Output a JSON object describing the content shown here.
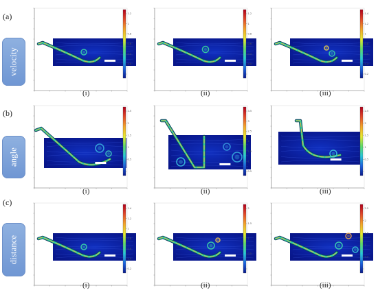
{
  "figure": {
    "rows": [
      {
        "letter": "(a)",
        "tab": "velocity",
        "panels": [
          {
            "label": "(i)",
            "variant": "v1",
            "cbar_ticks": [
              "1.2",
              "1",
              "0.8",
              "0.6",
              "0.4",
              "0.2",
              ""
            ]
          },
          {
            "label": "(ii)",
            "variant": "v2",
            "cbar_ticks": [
              "1.2",
              "1",
              "0.8",
              "0.6",
              "0.4",
              "0.2",
              ""
            ]
          },
          {
            "label": "(iii)",
            "variant": "v3",
            "cbar_ticks": [
              "1.4",
              "1.2",
              "1",
              "0.8",
              "0.6",
              "0.4",
              "0.2"
            ]
          }
        ]
      },
      {
        "letter": "(b)",
        "tab": "angle",
        "panels": [
          {
            "label": "(i)",
            "variant": "a1",
            "cbar_ticks": [
              "2.5",
              "2",
              "1.5",
              "1",
              "0.5",
              ""
            ]
          },
          {
            "label": "(ii)",
            "variant": "a2",
            "cbar_ticks": [
              "3.5",
              "3",
              "2.5",
              "2",
              "1.5",
              "1",
              "0.5"
            ]
          },
          {
            "label": "(iii)",
            "variant": "a3",
            "cbar_ticks": [
              "2.5",
              "2",
              "1.5",
              "1",
              "0.5",
              ""
            ]
          }
        ]
      },
      {
        "letter": "(c)",
        "tab": "distance",
        "panels": [
          {
            "label": "(i)",
            "variant": "d1",
            "cbar_ticks": [
              "1.4",
              "1.2",
              "1",
              "0.8",
              "0.6",
              "0.4",
              "0.2"
            ]
          },
          {
            "label": "(ii)",
            "variant": "d2",
            "cbar_ticks": [
              "2",
              "1.5",
              "1",
              "0.5",
              ""
            ]
          },
          {
            "label": "(iii)",
            "variant": "d3",
            "cbar_ticks": [
              "2.5",
              "2",
              "1.5",
              "1",
              "0.5",
              ""
            ]
          }
        ]
      }
    ],
    "colors": {
      "tab_blue": "#7aa0d8",
      "field_blue": "#0a1e9c",
      "colorbar": [
        "#b3001b",
        "#e34a2a",
        "#f4a52a",
        "#eaea2f",
        "#5fdc6a",
        "#27c9d8",
        "#1c63e0",
        "#0a1a8c"
      ]
    }
  }
}
